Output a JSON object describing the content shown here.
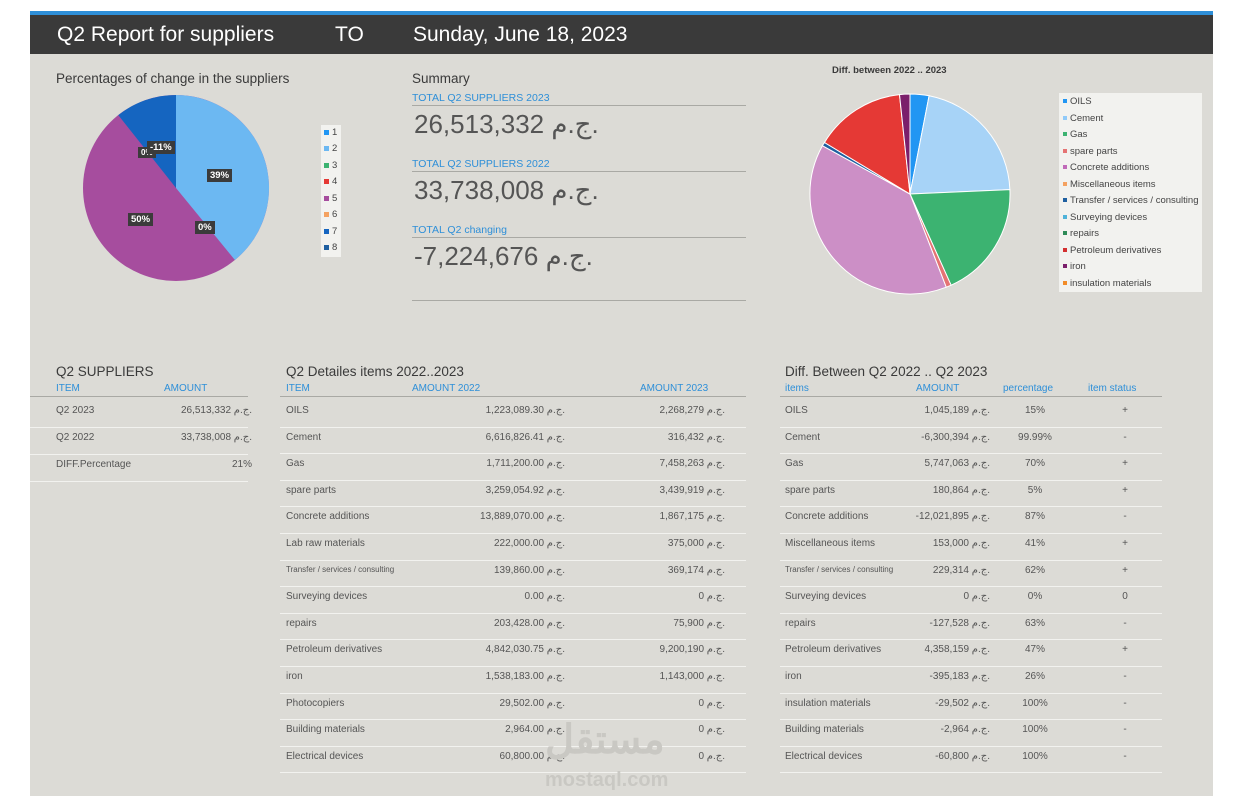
{
  "header": {
    "title": "Q2 Report for suppliers",
    "to": "TO",
    "date": "Sunday, June 18, 2023"
  },
  "left_chart": {
    "title": "Percentages of change in the suppliers",
    "labels": [
      "39%",
      "0%",
      "50%",
      "0%",
      "-11%"
    ],
    "legend": [
      "1",
      "2",
      "3",
      "4",
      "5",
      "6",
      "7",
      "8"
    ]
  },
  "summary": {
    "title": "Summary",
    "items": [
      {
        "label": "TOTAL Q2 SUPPLIERS 2023",
        "value": "26,513,332 ج.م."
      },
      {
        "label": "TOTAL Q2 SUPPLIERS 2022",
        "value": "33,738,008 ج.م."
      },
      {
        "label": "TOTAL Q2 changing",
        "value": "-7,224,676 ج.م."
      }
    ]
  },
  "right_chart": {
    "title": "Diff. between 2022 .. 2023",
    "legend": [
      "OILS",
      "Cement",
      "Gas",
      "spare parts",
      "Concrete additions",
      "Miscellaneous items",
      "Transfer / services / consulting",
      "Surveying devices",
      "repairs",
      "Petroleum derivatives",
      "iron",
      "insulation materials"
    ],
    "colors": [
      "#2196f3",
      "#90caf9",
      "#3cb371",
      "#e57373",
      "#c06ab8",
      "#f4a261",
      "#1f5fa0",
      "#4fb3d9",
      "#2e8b57",
      "#d32f2f",
      "#7b1f6b",
      "#f28c28"
    ]
  },
  "suppliers_table": {
    "title": "Q2 SUPPLIERS",
    "headers": [
      "ITEM",
      "AMOUNT"
    ],
    "rows": [
      [
        "Q2 2023",
        "26,513,332 ج.م."
      ],
      [
        "Q2 2022",
        "33,738,008 ج.م."
      ],
      [
        "DIFF.Percentage",
        "21%"
      ]
    ]
  },
  "details_table": {
    "title": "Q2 Detailes items 2022..2023",
    "headers": [
      "ITEM",
      "AMOUNT 2022",
      "AMOUNT 2023"
    ],
    "rows": [
      [
        "OILS",
        "1,223,089.30 ج.م.",
        "2,268,279 ج.م."
      ],
      [
        "Cement",
        "6,616,826.41 ج.م.",
        "316,432 ج.م."
      ],
      [
        "Gas",
        "1,711,200.00 ج.م.",
        "7,458,263 ج.م."
      ],
      [
        "spare parts",
        "3,259,054.92 ج.م.",
        "3,439,919 ج.م."
      ],
      [
        "Concrete additions",
        "13,889,070.00 ج.م.",
        "1,867,175 ج.م."
      ],
      [
        "Lab raw materials",
        "222,000.00 ج.م.",
        "375,000 ج.م."
      ],
      [
        "Transfer / services / consulting",
        "139,860.00 ج.م.",
        "369,174 ج.م."
      ],
      [
        "Surveying devices",
        "0.00 ج.م.",
        "0 ج.م."
      ],
      [
        "repairs",
        "203,428.00 ج.م.",
        "75,900 ج.م."
      ],
      [
        "Petroleum derivatives",
        "4,842,030.75 ج.م.",
        "9,200,190 ج.م."
      ],
      [
        "iron",
        "1,538,183.00 ج.م.",
        "1,143,000 ج.م."
      ],
      [
        "Photocopiers",
        "29,502.00 ج.م.",
        "0 ج.م."
      ],
      [
        "Building materials",
        "2,964.00 ج.م.",
        "0 ج.م."
      ],
      [
        "Electrical devices",
        "60,800.00 ج.م.",
        "0 ج.م."
      ]
    ]
  },
  "diff_table": {
    "title": "Diff. Between Q2 2022 .. Q2 2023",
    "headers": [
      "items",
      "AMOUNT",
      "percentage",
      "item status"
    ],
    "rows": [
      [
        "OILS",
        "1,045,189 ج.م.",
        "15%",
        "+"
      ],
      [
        "Cement",
        "-6,300,394 ج.م.",
        "99.99%",
        "-"
      ],
      [
        "Gas",
        "5,747,063 ج.م.",
        "70%",
        "+"
      ],
      [
        "spare parts",
        "180,864 ج.م.",
        "5%",
        "+"
      ],
      [
        "Concrete additions",
        "-12,021,895 ج.م.",
        "87%",
        "-"
      ],
      [
        "Miscellaneous items",
        "153,000 ج.م.",
        "41%",
        "+"
      ],
      [
        "Transfer / services / consulting",
        "229,314 ج.م.",
        "62%",
        "+"
      ],
      [
        "Surveying devices",
        "0 ج.م.",
        "0%",
        "0"
      ],
      [
        "repairs",
        "-127,528 ج.م.",
        "63%",
        "-"
      ],
      [
        "Petroleum derivatives",
        "4,358,159 ج.م.",
        "47%",
        "+"
      ],
      [
        "iron",
        "-395,183 ج.م.",
        "26%",
        "-"
      ],
      [
        "insulation materials",
        "-29,502 ج.م.",
        "100%",
        "-"
      ],
      [
        "Building materials",
        "-2,964 ج.م.",
        "100%",
        "-"
      ],
      [
        "Electrical devices",
        "-60,800 ج.م.",
        "100%",
        "-"
      ]
    ]
  },
  "watermark": {
    "arabic": "مستقل",
    "latin": "mostaql.com"
  }
}
